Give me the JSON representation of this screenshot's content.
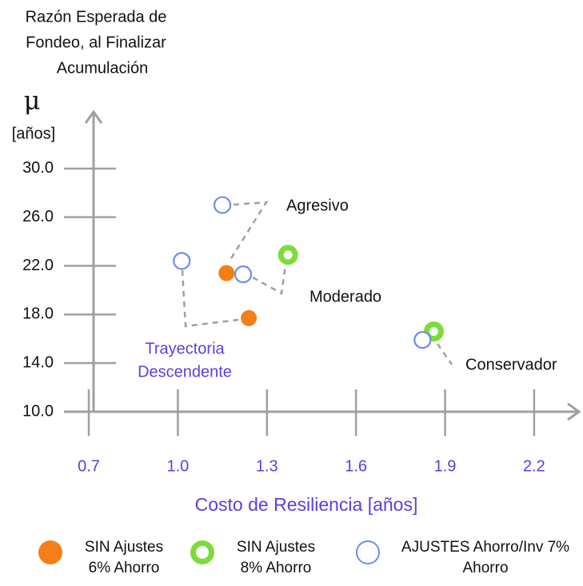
{
  "chart_data": {
    "type": "scatter",
    "title_lines": [
      "Razón Esperada de",
      "Fondeo, al Finalizar",
      "Acumulación"
    ],
    "y_symbol": "μ",
    "y_unit": "[años]",
    "x_label": "Costo de Resiliencia [años]",
    "xlim": [
      0.6,
      2.35
    ],
    "ylim": [
      8,
      34
    ],
    "xticks": [
      0.7,
      {
        "value": 1.0,
        "label": "1.0"
      },
      1.3,
      1.6,
      1.9,
      2.2
    ],
    "yticks": [
      {
        "value": 10,
        "label": "10.0"
      },
      {
        "value": 14,
        "label": "14.0"
      },
      {
        "value": 18,
        "label": "18.0"
      },
      {
        "value": 22,
        "label": "22.0"
      },
      {
        "value": 26,
        "label": "26.0"
      },
      {
        "value": 30,
        "label": "30.0"
      }
    ],
    "series": [
      {
        "name": "SIN Ajustes 6% Ahorro",
        "color": "#f47f17",
        "x": [
          1.164,
          1.239
        ],
        "values": [
          21.4,
          17.7
        ]
      },
      {
        "name": "SIN Ajustes 8% Ahorro",
        "color": "#7ddc3a",
        "x": [
          1.371,
          1.862
        ],
        "values": [
          22.9,
          16.6
        ]
      },
      {
        "name": "AJUSTES Ahorro/Inv 7% Ahorro",
        "color": "#6b8ee8",
        "x": [
          1.15,
          1.013,
          1.22,
          1.824
        ],
        "values": [
          27.0,
          22.4,
          21.3,
          15.9
        ]
      }
    ],
    "annotations": [
      "Agresivo",
      "Moderado",
      "Conservador",
      "Trayectoria",
      "Descendente"
    ]
  }
}
